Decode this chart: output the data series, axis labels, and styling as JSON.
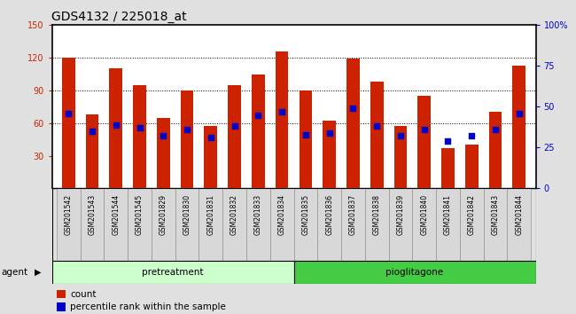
{
  "title": "GDS4132 / 225018_at",
  "samples": [
    "GSM201542",
    "GSM201543",
    "GSM201544",
    "GSM201545",
    "GSM201829",
    "GSM201830",
    "GSM201831",
    "GSM201832",
    "GSM201833",
    "GSM201834",
    "GSM201835",
    "GSM201836",
    "GSM201837",
    "GSM201838",
    "GSM201839",
    "GSM201840",
    "GSM201841",
    "GSM201842",
    "GSM201843",
    "GSM201844"
  ],
  "counts": [
    120,
    68,
    110,
    95,
    65,
    90,
    57,
    95,
    105,
    126,
    90,
    62,
    119,
    98,
    57,
    85,
    37,
    40,
    70,
    113
  ],
  "percentiles": [
    46,
    35,
    39,
    37,
    32,
    36,
    31,
    38,
    45,
    47,
    33,
    34,
    49,
    38,
    32,
    36,
    29,
    32,
    36,
    46
  ],
  "group1_label": "pretreatment",
  "group1_count": 10,
  "group2_label": "pioglitagone",
  "group2_count": 10,
  "agent_label": "agent",
  "legend1": "count",
  "legend2": "percentile rank within the sample",
  "bar_color": "#cc2200",
  "dot_color": "#0000cc",
  "group1_color": "#ccffcc",
  "group2_color": "#44cc44",
  "ylim_left": [
    0,
    150
  ],
  "yticks_left": [
    30,
    60,
    90,
    120,
    150
  ],
  "ylim_right": [
    0,
    100
  ],
  "yticks_right": [
    0,
    25,
    50,
    75,
    100
  ],
  "grid_lines": [
    60,
    90,
    120
  ],
  "fig_bg": "#e0e0e0",
  "plot_bg": "#ffffff",
  "title_fontsize": 10,
  "tick_fontsize": 7,
  "label_fontsize": 7.5
}
